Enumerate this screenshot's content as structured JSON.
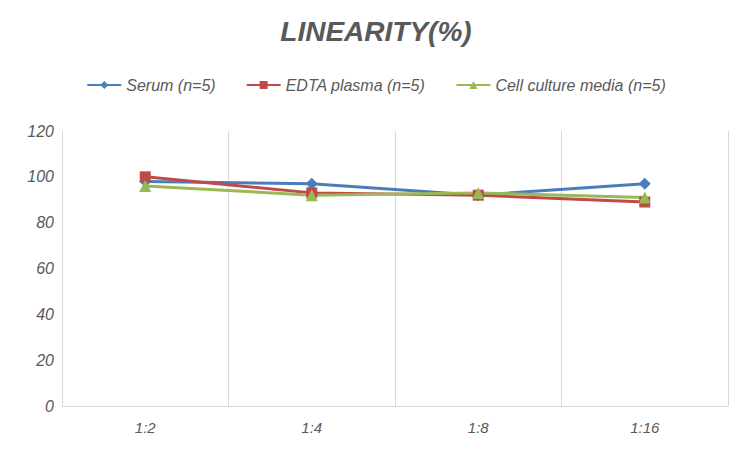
{
  "chart_data": {
    "type": "line",
    "title": "LINEARITY(%)",
    "categories": [
      "1:2",
      "1:4",
      "1:8",
      "1:16"
    ],
    "series": [
      {
        "name": "Serum (n=5)",
        "color": "#4a7ebb",
        "marker": "diamond",
        "values": [
          98,
          97,
          92,
          97
        ]
      },
      {
        "name": "EDTA plasma (n=5)",
        "color": "#be4b48",
        "marker": "square",
        "values": [
          100,
          93,
          92,
          89
        ]
      },
      {
        "name": "Cell culture media (n=5)",
        "color": "#98b954",
        "marker": "triangle",
        "values": [
          96,
          92,
          93,
          91
        ]
      }
    ],
    "ylim": [
      0,
      120
    ],
    "yticks": [
      0,
      20,
      40,
      60,
      80,
      100,
      120
    ],
    "grid": true,
    "legend": "top"
  }
}
